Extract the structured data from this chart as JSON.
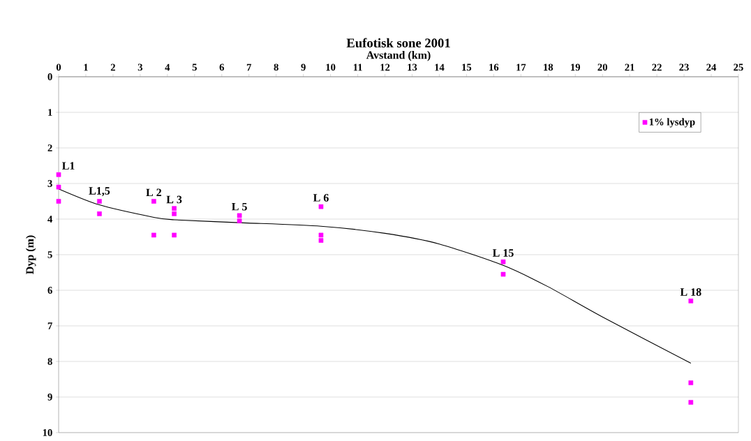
{
  "chart_data": {
    "type": "scatter",
    "title": "Eufotisk sone 2001",
    "xlabel": "Avstand (km)",
    "ylabel": "Dyp (m)",
    "xlim": [
      0,
      25
    ],
    "xticks": [
      0,
      1,
      2,
      3,
      4,
      5,
      6,
      7,
      8,
      9,
      10,
      11,
      12,
      13,
      14,
      15,
      16,
      17,
      18,
      19,
      20,
      21,
      22,
      23,
      24,
      25
    ],
    "ylim": [
      10,
      0
    ],
    "yticks": [
      0,
      1,
      2,
      3,
      4,
      5,
      6,
      7,
      8,
      9,
      10
    ],
    "grid": "y",
    "legend": "top right",
    "marker": "square",
    "series": [
      {
        "name": "1% lysdyp",
        "color": "#ff00ff",
        "x": [
          0,
          0,
          0,
          1.5,
          1.5,
          3.5,
          3.5,
          4.25,
          4.25,
          4.25,
          6.65,
          6.65,
          9.65,
          9.65,
          9.65,
          16.35,
          16.35,
          23.25,
          23.25,
          23.25
        ],
        "values": [
          2.75,
          3.1,
          3.5,
          3.5,
          3.85,
          3.5,
          4.45,
          3.7,
          3.85,
          4.45,
          3.9,
          4.05,
          3.65,
          4.45,
          4.6,
          5.2,
          5.55,
          6.3,
          8.6,
          9.15
        ]
      },
      {
        "type": "line",
        "marker": "none",
        "line_style": "solid",
        "color": "#000000",
        "x": [
          0,
          1.5,
          3.5,
          4.25,
          6.65,
          9.65,
          12,
          14,
          16.35,
          18,
          20,
          23.25
        ],
        "values": [
          3.15,
          3.6,
          3.95,
          4.02,
          4.1,
          4.2,
          4.4,
          4.7,
          5.3,
          5.9,
          6.75,
          8.05
        ]
      }
    ],
    "annotations": [
      {
        "text": "L1",
        "x": 0,
        "y": 2.75
      },
      {
        "text": "L1,5",
        "x": 1.5,
        "y": 3.5
      },
      {
        "text": "L 2",
        "x": 3.5,
        "y": 3.5
      },
      {
        "text": "L 3",
        "x": 4.25,
        "y": 3.7
      },
      {
        "text": "L 5",
        "x": 6.65,
        "y": 3.9
      },
      {
        "text": "L 6",
        "x": 9.65,
        "y": 3.65
      },
      {
        "text": "L 15",
        "x": 16.35,
        "y": 5.2
      },
      {
        "text": "L 18",
        "x": 23.25,
        "y": 6.3
      }
    ]
  }
}
